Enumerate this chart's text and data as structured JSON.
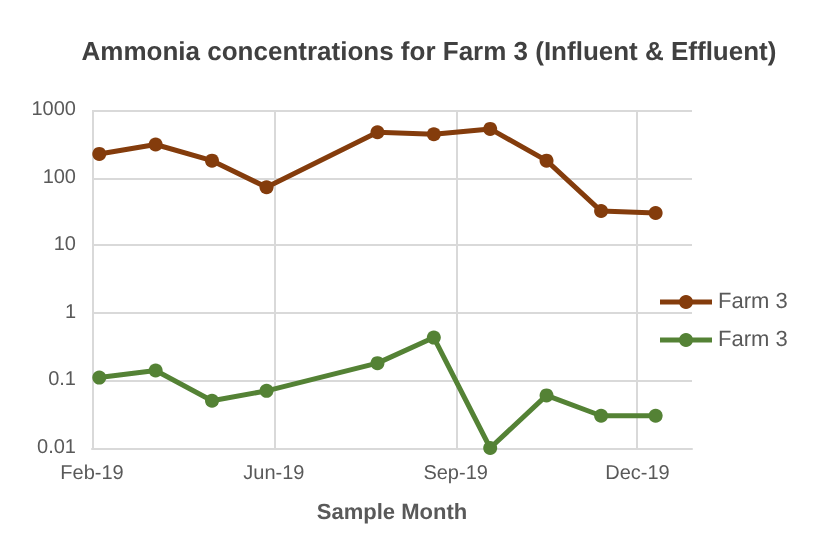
{
  "chart_data": {
    "type": "line",
    "title": "Ammonia concentrations for Farm 3 (Influent & Effluent)",
    "xlabel": "Sample Month",
    "x": [
      "2019-02-26",
      "2019-03-29",
      "2019-04-29",
      "2019-05-29",
      "2019-07-29",
      "2019-08-29",
      "2019-09-29",
      "2019-10-30",
      "2019-11-29",
      "2019-12-29"
    ],
    "series": [
      {
        "name": "Farm 3",
        "color": "#843c0c",
        "values": [
          224,
          309,
          178,
          72,
          468,
          437,
          525,
          178,
          32,
          30
        ]
      },
      {
        "name": "Farm 3",
        "color": "#548235",
        "values": [
          0.11,
          0.14,
          0.05,
          0.07,
          0.18,
          0.43,
          0.01,
          0.06,
          0.03,
          0.03
        ]
      }
    ],
    "xlim": [
      "2019-02-22",
      "2020-01-18"
    ],
    "xticks": [
      {
        "value": "2019-02-22",
        "label": "Feb-19"
      },
      {
        "value": "2019-06-02",
        "label": "Jun-19"
      },
      {
        "value": "2019-09-10",
        "label": "Sep-19"
      },
      {
        "value": "2019-12-19",
        "label": "Dec-19"
      }
    ],
    "ylim": [
      0.01,
      1000
    ],
    "yticks": [
      0.01,
      0.1,
      1,
      10,
      100,
      1000
    ],
    "log": true,
    "grid": true,
    "legend": "right",
    "marker": "circle",
    "line_style": "solid"
  }
}
